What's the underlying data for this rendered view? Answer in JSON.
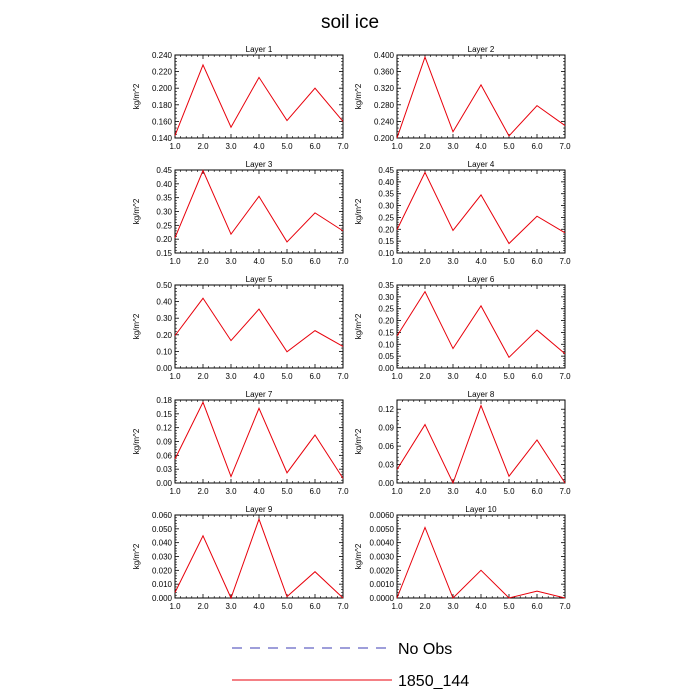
{
  "title": "soil ice",
  "colors": {
    "series": "#e8000b",
    "obs": "#3c3cb4",
    "axis": "#000000",
    "background": "#ffffff"
  },
  "legend": [
    {
      "name": "No Obs",
      "style": "dashed",
      "color": "#3c3cb4"
    },
    {
      "name": "1850_144",
      "style": "solid",
      "color": "#e8000b"
    }
  ],
  "chart_data": [
    {
      "type": "line",
      "title": "Layer 1",
      "ylabel": "kg/m^2",
      "x": [
        1,
        2,
        3,
        4,
        5,
        6,
        7
      ],
      "xlim": [
        1,
        7
      ],
      "xticks": [
        "1.0",
        "2.0",
        "3.0",
        "4.0",
        "5.0",
        "6.0",
        "7.0"
      ],
      "ylim": [
        0.14,
        0.24
      ],
      "yticks": [
        "0.140",
        "0.160",
        "0.180",
        "0.200",
        "0.220",
        "0.240"
      ],
      "series": [
        {
          "name": "1850_144",
          "values": [
            0.143,
            0.228,
            0.153,
            0.213,
            0.161,
            0.2,
            0.16
          ]
        }
      ]
    },
    {
      "type": "line",
      "title": "Layer 2",
      "ylabel": "kg/m^2",
      "x": [
        1,
        2,
        3,
        4,
        5,
        6,
        7
      ],
      "xlim": [
        1,
        7
      ],
      "xticks": [
        "1.0",
        "2.0",
        "3.0",
        "4.0",
        "5.0",
        "6.0",
        "7.0"
      ],
      "ylim": [
        0.2,
        0.4
      ],
      "yticks": [
        "0.200",
        "0.240",
        "0.280",
        "0.320",
        "0.360",
        "0.400"
      ],
      "series": [
        {
          "name": "1850_144",
          "values": [
            0.2,
            0.395,
            0.215,
            0.328,
            0.205,
            0.278,
            0.23
          ]
        }
      ]
    },
    {
      "type": "line",
      "title": "Layer 3",
      "ylabel": "kg/m^2",
      "x": [
        1,
        2,
        3,
        4,
        5,
        6,
        7
      ],
      "xlim": [
        1,
        7
      ],
      "xticks": [
        "1.0",
        "2.0",
        "3.0",
        "4.0",
        "5.0",
        "6.0",
        "7.0"
      ],
      "ylim": [
        0.15,
        0.45
      ],
      "yticks": [
        "0.15",
        "0.20",
        "0.25",
        "0.30",
        "0.35",
        "0.40",
        "0.45"
      ],
      "series": [
        {
          "name": "1850_144",
          "values": [
            0.205,
            0.448,
            0.218,
            0.355,
            0.19,
            0.295,
            0.23
          ]
        }
      ]
    },
    {
      "type": "line",
      "title": "Layer 4",
      "ylabel": "kg/m^2",
      "x": [
        1,
        2,
        3,
        4,
        5,
        6,
        7
      ],
      "xlim": [
        1,
        7
      ],
      "xticks": [
        "1.0",
        "2.0",
        "3.0",
        "4.0",
        "5.0",
        "6.0",
        "7.0"
      ],
      "ylim": [
        0.1,
        0.45
      ],
      "yticks": [
        "0.10",
        "0.15",
        "0.20",
        "0.25",
        "0.30",
        "0.35",
        "0.40",
        "0.45"
      ],
      "series": [
        {
          "name": "1850_144",
          "values": [
            0.198,
            0.44,
            0.195,
            0.345,
            0.14,
            0.255,
            0.185
          ]
        }
      ]
    },
    {
      "type": "line",
      "title": "Layer 5",
      "ylabel": "kg/m^2",
      "x": [
        1,
        2,
        3,
        4,
        5,
        6,
        7
      ],
      "xlim": [
        1,
        7
      ],
      "xticks": [
        "1.0",
        "2.0",
        "3.0",
        "4.0",
        "5.0",
        "6.0",
        "7.0"
      ],
      "ylim": [
        0,
        0.5
      ],
      "yticks": [
        "0.00",
        "0.10",
        "0.20",
        "0.30",
        "0.40",
        "0.50"
      ],
      "series": [
        {
          "name": "1850_144",
          "values": [
            0.195,
            0.42,
            0.165,
            0.355,
            0.098,
            0.225,
            0.13
          ]
        }
      ]
    },
    {
      "type": "line",
      "title": "Layer 6",
      "ylabel": "kg/m^2",
      "x": [
        1,
        2,
        3,
        4,
        5,
        6,
        7
      ],
      "xlim": [
        1,
        7
      ],
      "xticks": [
        "1.0",
        "2.0",
        "3.0",
        "4.0",
        "5.0",
        "6.0",
        "7.0"
      ],
      "ylim": [
        0,
        0.35
      ],
      "yticks": [
        "0.00",
        "0.05",
        "0.10",
        "0.15",
        "0.20",
        "0.25",
        "0.30",
        "0.35"
      ],
      "series": [
        {
          "name": "1850_144",
          "values": [
            0.135,
            0.322,
            0.082,
            0.262,
            0.045,
            0.16,
            0.06
          ]
        }
      ]
    },
    {
      "type": "line",
      "title": "Layer 7",
      "ylabel": "kg/m^2",
      "x": [
        1,
        2,
        3,
        4,
        5,
        6,
        7
      ],
      "xlim": [
        1,
        7
      ],
      "xticks": [
        "1.0",
        "2.0",
        "3.0",
        "4.0",
        "5.0",
        "6.0",
        "7.0"
      ],
      "ylim": [
        0,
        0.18
      ],
      "yticks": [
        "0.00",
        "0.03",
        "0.06",
        "0.09",
        "0.12",
        "0.15",
        "0.18"
      ],
      "series": [
        {
          "name": "1850_144",
          "values": [
            0.052,
            0.175,
            0.014,
            0.162,
            0.022,
            0.104,
            0.01
          ]
        }
      ]
    },
    {
      "type": "line",
      "title": "Layer 8",
      "ylabel": "kg/m^2",
      "x": [
        1,
        2,
        3,
        4,
        5,
        6,
        7
      ],
      "xlim": [
        1,
        7
      ],
      "xticks": [
        "1.0",
        "2.0",
        "3.0",
        "4.0",
        "5.0",
        "6.0",
        "7.0"
      ],
      "ylim": [
        0,
        0.135
      ],
      "yticks": [
        "0.00",
        "0.03",
        "0.06",
        "0.09",
        "0.12"
      ],
      "series": [
        {
          "name": "1850_144",
          "values": [
            0.022,
            0.095,
            0.0,
            0.126,
            0.011,
            0.07,
            0.0
          ]
        }
      ]
    },
    {
      "type": "line",
      "title": "Layer 9",
      "ylabel": "kg/m^2",
      "x": [
        1,
        2,
        3,
        4,
        5,
        6,
        7
      ],
      "xlim": [
        1,
        7
      ],
      "xticks": [
        "1.0",
        "2.0",
        "3.0",
        "4.0",
        "5.0",
        "6.0",
        "7.0"
      ],
      "ylim": [
        0,
        0.06
      ],
      "yticks": [
        "0.000",
        "0.010",
        "0.020",
        "0.030",
        "0.040",
        "0.050",
        "0.060"
      ],
      "series": [
        {
          "name": "1850_144",
          "values": [
            0.004,
            0.045,
            0.0,
            0.057,
            0.001,
            0.019,
            0.0
          ]
        }
      ]
    },
    {
      "type": "line",
      "title": "Layer 10",
      "ylabel": "kg/m^2",
      "x": [
        1,
        2,
        3,
        4,
        5,
        6,
        7
      ],
      "xlim": [
        1,
        7
      ],
      "xticks": [
        "1.0",
        "2.0",
        "3.0",
        "4.0",
        "5.0",
        "6.0",
        "7.0"
      ],
      "ylim": [
        0,
        0.006
      ],
      "yticks": [
        "0.0000",
        "0.0010",
        "0.0020",
        "0.0030",
        "0.0040",
        "0.0050",
        "0.0060"
      ],
      "series": [
        {
          "name": "1850_144",
          "values": [
            0.0,
            0.0051,
            0.0,
            0.002,
            0.0,
            0.0005,
            0.0
          ]
        }
      ]
    }
  ]
}
